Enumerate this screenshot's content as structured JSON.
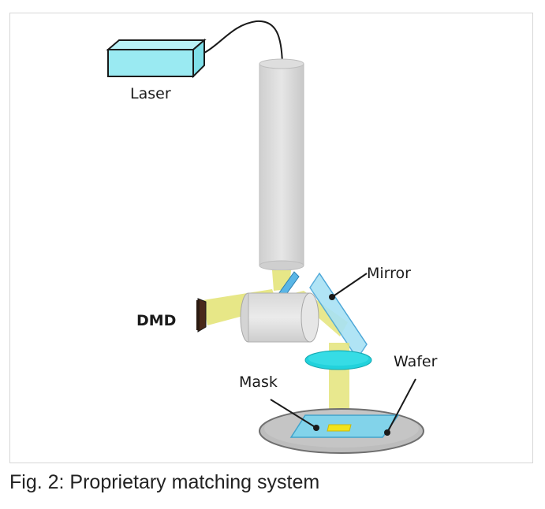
{
  "diagram": {
    "labels": {
      "laser": "Laser",
      "mirror": "Mirror",
      "dmd": "DMD",
      "wafer": "Wafer",
      "mask": "Mask"
    }
  },
  "caption": "Fig. 2: Proprietary matching system"
}
